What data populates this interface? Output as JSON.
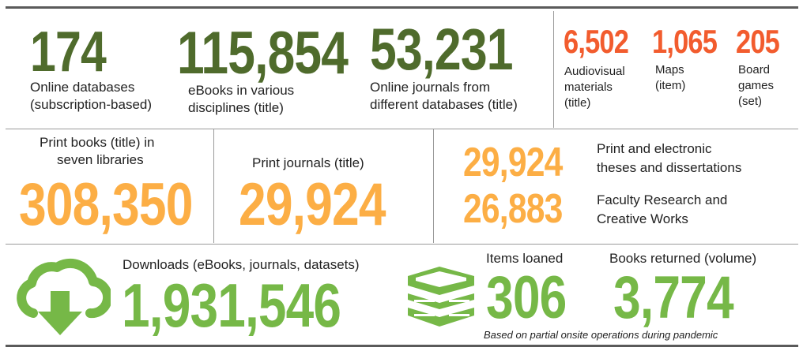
{
  "colors": {
    "olive": "#4f6b2c",
    "red": "#f25c2e",
    "orange": "#fcae45",
    "green": "#76b847",
    "rule": "#5a5a5a",
    "divider": "#9a9a9a"
  },
  "row1": {
    "databases": {
      "value": "174",
      "label_line1": "Online databases",
      "label_line2": "(subscription-based)"
    },
    "ebooks": {
      "value": "115,854",
      "label_line1": "eBooks in various",
      "label_line2": "disciplines (title)"
    },
    "journals": {
      "value": "53,231",
      "label_line1": "Online journals from",
      "label_line2": "different databases (title)"
    },
    "audiovisual": {
      "value": "6,502",
      "label_line1": "Audiovisual",
      "label_line2": "materials",
      "label_line3": "(title)"
    },
    "maps": {
      "value": "1,065",
      "label_line1": "Maps",
      "label_line2": "(item)"
    },
    "boardgames": {
      "value": "205",
      "label_line1": "Board",
      "label_line2": "games",
      "label_line3": "(set)"
    }
  },
  "row2": {
    "print_books": {
      "label_line1": "Print books (title) in",
      "label_line2": "seven libraries",
      "value": "308,350"
    },
    "print_journals": {
      "label": "Print journals (title)",
      "value": "29,924"
    },
    "theses": {
      "value": "29,924",
      "label_line1": "Print and electronic",
      "label_line2": "theses and dissertations"
    },
    "faculty": {
      "value": "26,883",
      "label_line1": "Faculty Research and",
      "label_line2": "Creative Works"
    }
  },
  "row3": {
    "downloads": {
      "icon": "cloud-download-icon",
      "label": "Downloads (eBooks, journals, datasets)",
      "value": "1,931,546"
    },
    "loaned": {
      "icon": "books-stack-icon",
      "label": "Items loaned",
      "value": "306"
    },
    "returned": {
      "label": "Books returned (volume)",
      "value": "3,774"
    },
    "footnote": "Based on partial onsite operations during pandemic"
  }
}
